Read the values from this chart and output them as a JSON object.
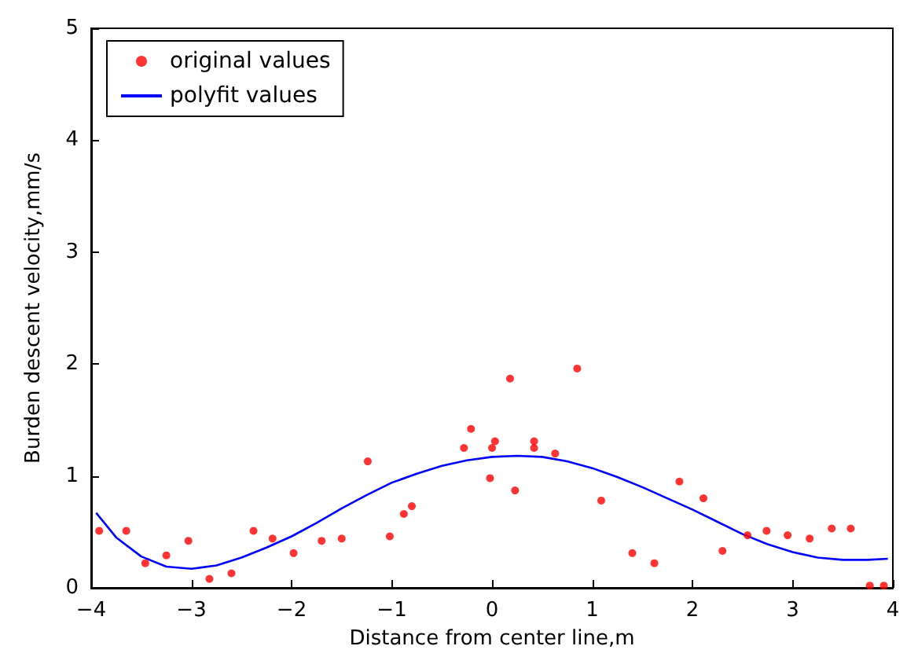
{
  "chart_data": {
    "type": "scatter",
    "xlabel": "Distance from center line,m",
    "ylabel": "Burden descent velocity,mm/s",
    "xlim": [
      -4,
      4
    ],
    "xticks": [
      -4,
      -3,
      -2,
      -1,
      0,
      1,
      2,
      3,
      4
    ],
    "ylim": [
      0,
      5
    ],
    "yticks": [
      0,
      1,
      2,
      3,
      4,
      5
    ],
    "grid": false,
    "legend": "top left",
    "series": [
      {
        "name": "original values",
        "color": "#ff0000",
        "marker": "circle",
        "x": [
          -3.92,
          -3.65,
          -3.46,
          -3.25,
          -3.03,
          -2.82,
          -2.6,
          -2.38,
          -2.19,
          -1.98,
          -1.7,
          -1.5,
          -1.24,
          -1.02,
          -0.88,
          -0.8,
          -0.28,
          -0.21,
          -0.02,
          0.0,
          0.03,
          0.18,
          0.23,
          0.42,
          0.42,
          0.63,
          0.85,
          1.09,
          1.4,
          1.62,
          1.87,
          2.11,
          2.3,
          2.55,
          2.74,
          2.95,
          3.17,
          3.39,
          3.58,
          3.77,
          3.91
        ],
        "values": [
          0.51,
          0.51,
          0.22,
          0.29,
          0.42,
          0.08,
          0.13,
          0.51,
          0.44,
          0.31,
          0.42,
          0.44,
          1.13,
          0.46,
          0.66,
          0.73,
          1.25,
          1.42,
          0.98,
          1.25,
          1.31,
          1.87,
          0.87,
          1.31,
          1.25,
          1.2,
          1.96,
          0.78,
          0.31,
          0.22,
          0.95,
          0.8,
          0.33,
          0.47,
          0.51,
          0.47,
          0.44,
          0.53,
          0.53,
          0.02,
          0.02
        ]
      },
      {
        "name": "polyfit values",
        "type": "line",
        "color": "#0000ff",
        "marker": "none",
        "line_style": "solid",
        "x": [
          -3.95,
          -3.75,
          -3.5,
          -3.25,
          -3,
          -2.75,
          -2.5,
          -2.25,
          -2,
          -1.75,
          -1.5,
          -1.25,
          -1,
          -0.75,
          -0.5,
          -0.25,
          0,
          0.25,
          0.5,
          0.75,
          1,
          1.25,
          1.5,
          1.75,
          2,
          2.25,
          2.5,
          2.75,
          3,
          3.25,
          3.5,
          3.75,
          3.95
        ],
        "values": [
          0.67,
          0.45,
          0.28,
          0.19,
          0.17,
          0.2,
          0.27,
          0.36,
          0.46,
          0.58,
          0.71,
          0.83,
          0.94,
          1.02,
          1.09,
          1.14,
          1.17,
          1.18,
          1.17,
          1.13,
          1.07,
          0.99,
          0.9,
          0.8,
          0.7,
          0.59,
          0.48,
          0.39,
          0.32,
          0.27,
          0.25,
          0.25,
          0.26
        ]
      }
    ]
  }
}
